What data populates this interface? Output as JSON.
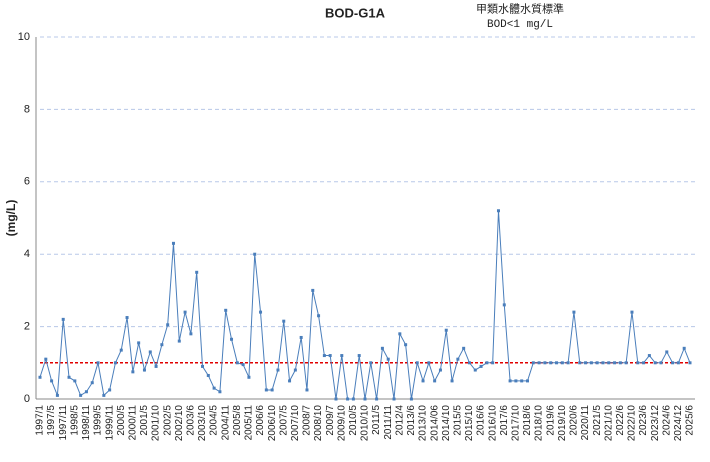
{
  "chart_data": {
    "type": "line",
    "title": "BOD-G1A",
    "annotations": [
      "甲類水體水質標準",
      "BOD<1 mg/L"
    ],
    "y_label": "(mg/L)",
    "categories": [
      "1997/1",
      null,
      "1997/5",
      null,
      "1997/11",
      null,
      "1998/5",
      null,
      "1998/11",
      null,
      "1999/5",
      null,
      "1999/11",
      null,
      "2000/5",
      null,
      "2000/11",
      null,
      "2001/5",
      null,
      "2001/10",
      null,
      "2002/5",
      null,
      "2002/10",
      null,
      "2003/6",
      null,
      "2003/10",
      null,
      "2004/5",
      null,
      "2004/11",
      null,
      "2005/8",
      null,
      "2005/11",
      null,
      "2006/6",
      null,
      "2006/10",
      null,
      "2007/5",
      null,
      "2007/10",
      null,
      "2008/7",
      null,
      "2008/10",
      null,
      "2009/7",
      null,
      "2009/10",
      null,
      "2010/5",
      null,
      "2010/10",
      null,
      "2011/5",
      null,
      "2011/11",
      null,
      "2012/4",
      null,
      "2013/6",
      null,
      "2013/10",
      null,
      "2014/06",
      null,
      "2014/10",
      null,
      "2015/5",
      null,
      "2015/10",
      null,
      "2016/6",
      null,
      "2016/10",
      null,
      "2017/6",
      null,
      "2017/10",
      null,
      "2018/6",
      null,
      "2018/10",
      null,
      "2019/6",
      null,
      "2019/10",
      null,
      "2020/6",
      null,
      "2020/11",
      null,
      "2021/5",
      null,
      "2021/10",
      null,
      "2022/6",
      null,
      "2022/10",
      null,
      "2023/6",
      null,
      "2023/12",
      null,
      "2024/6",
      null,
      "2024/12",
      null,
      "2025/6"
    ],
    "series": [
      {
        "name": "BOD",
        "color": "#4a7ebb",
        "values": [
          0.6,
          1.1,
          0.5,
          0.1,
          2.2,
          0.6,
          0.5,
          0.1,
          0.2,
          0.45,
          1.0,
          0.1,
          0.25,
          1.0,
          1.35,
          2.25,
          0.75,
          1.55,
          0.8,
          1.3,
          0.9,
          1.5,
          2.05,
          4.3,
          1.6,
          2.4,
          1.8,
          3.5,
          0.9,
          0.65,
          0.3,
          0.2,
          2.45,
          1.65,
          1.0,
          0.95,
          0.6,
          4.0,
          2.4,
          0.25,
          0.25,
          0.8,
          2.15,
          0.5,
          0.8,
          1.7,
          0.25,
          3.0,
          2.3,
          1.2,
          1.2,
          0,
          1.2,
          0,
          0,
          1.2,
          0,
          1.0,
          0,
          1.4,
          1.1,
          0,
          1.8,
          1.5,
          0,
          1.0,
          0.5,
          1.0,
          0.5,
          0.8,
          1.9,
          0.5,
          1.1,
          1.4,
          1.0,
          0.8,
          0.9,
          1.0,
          1.0,
          5.2,
          2.6,
          0.5,
          0.5,
          0.5,
          0.5,
          1.0,
          1.0,
          1.0,
          1.0,
          1.0,
          1.0,
          1.0,
          2.4,
          1.0,
          1.0,
          1.0,
          1.0,
          1.0,
          1.0,
          1.0,
          1.0,
          1.0,
          2.4,
          1.0,
          1.0,
          1.2,
          1.0,
          1.0,
          1.3,
          1.0,
          1.0,
          1.4,
          1.0
        ]
      }
    ],
    "reference_line": {
      "value": 1,
      "color": "#e00000"
    },
    "ylim": [
      0,
      10
    ],
    "yticks": [
      0,
      2,
      4,
      6,
      8,
      10
    ],
    "grid": true,
    "grid_color": "#b8c8e8"
  }
}
